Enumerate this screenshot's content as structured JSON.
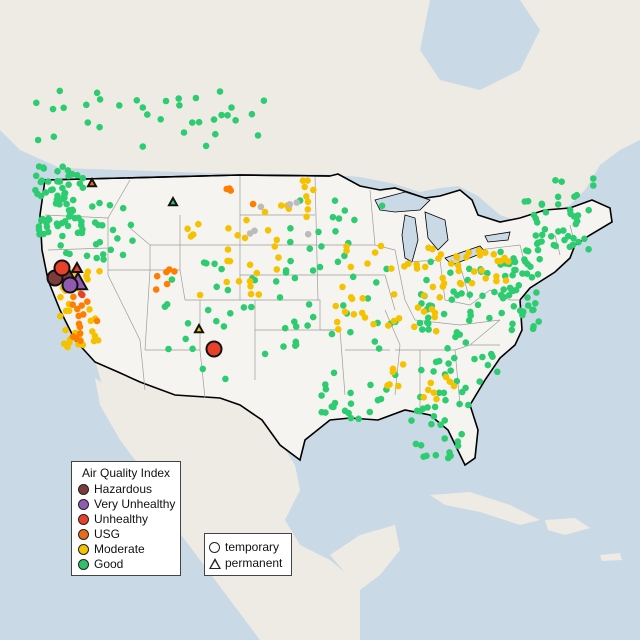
{
  "colors": {
    "water": "#c9d9e6",
    "land": "#f3f0ea",
    "us_land": "#f6f4f0",
    "border": "#000000",
    "state_lines": "#9c9c9c",
    "categories": {
      "hazardous": "#7e0023",
      "very_unhealthy": "#8f3f97",
      "unhealthy": "#e8412b",
      "usg": "#ff7e00",
      "moderate": "#f5c200",
      "good": "#2ecc71",
      "no_data": "#bbbbbb"
    }
  },
  "legend": {
    "title": "Air Quality Index",
    "items": [
      {
        "key": "hazardous",
        "label": "Hazardous",
        "color": "#7e3b3b"
      },
      {
        "key": "very_unhealthy",
        "label": "Very Unhealthy",
        "color": "#8f5ab0"
      },
      {
        "key": "unhealthy",
        "label": "Unhealthy",
        "color": "#e8412b"
      },
      {
        "key": "usg",
        "label": "USG",
        "color": "#e86b1a"
      },
      {
        "key": "moderate",
        "label": "Moderate",
        "color": "#f2c300"
      },
      {
        "key": "good",
        "label": "Good",
        "color": "#2ec16a"
      }
    ]
  },
  "site_legend": {
    "temporary": "temporary",
    "permanent": "permanent"
  }
}
